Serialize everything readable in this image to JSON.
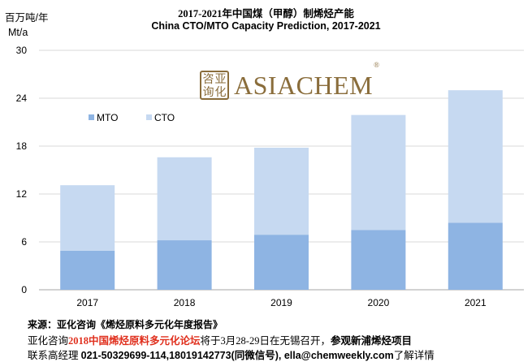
{
  "header": {
    "title_cn": "2017-2021年中国煤（甲醇）制烯烃产能",
    "title_en": "China CTO/MTO Capacity Prediction, 2017-2021",
    "ylabel_cn": "百万吨/年",
    "ylabel_en": "Mt/a"
  },
  "logo": {
    "seal_chars": [
      "咨",
      "亚",
      "询",
      "化"
    ],
    "word": "ASIACHEM",
    "reg": "®"
  },
  "chart_data": {
    "type": "bar",
    "stacked": true,
    "title": "China CTO/MTO Capacity Prediction, 2017-2021",
    "ylabel": "百万吨/年 Mt/a",
    "categories": [
      "2017",
      "2018",
      "2019",
      "2020",
      "2021"
    ],
    "series": [
      {
        "name": "MTO",
        "color": "#8eb4e3",
        "values": [
          4.9,
          6.2,
          6.9,
          7.5,
          8.4
        ]
      },
      {
        "name": "CTO",
        "color": "#c6d9f1",
        "values": [
          8.2,
          10.4,
          10.9,
          14.4,
          16.6
        ]
      }
    ],
    "ylim": [
      0,
      30
    ],
    "yticks": [
      "0",
      "6",
      "12",
      "18",
      "24",
      "30"
    ],
    "grid": true,
    "legend_position": "top-left"
  },
  "footer": {
    "line1": "来源：亚化咨询《烯烃原料多元化年度报告》",
    "line2_a": "亚化咨询",
    "line2_b": "2018中国烯烃原料多元化论坛",
    "line2_c": "将于3月28-29日在无锡召开，",
    "line2_d": "参观新浦烯烃项目",
    "line3_a": "联系高经理 ",
    "line3_b": "021-50329699-114,18019142773(同微信号), ella@chemweekly.com",
    "line3_c": "了解详情"
  }
}
